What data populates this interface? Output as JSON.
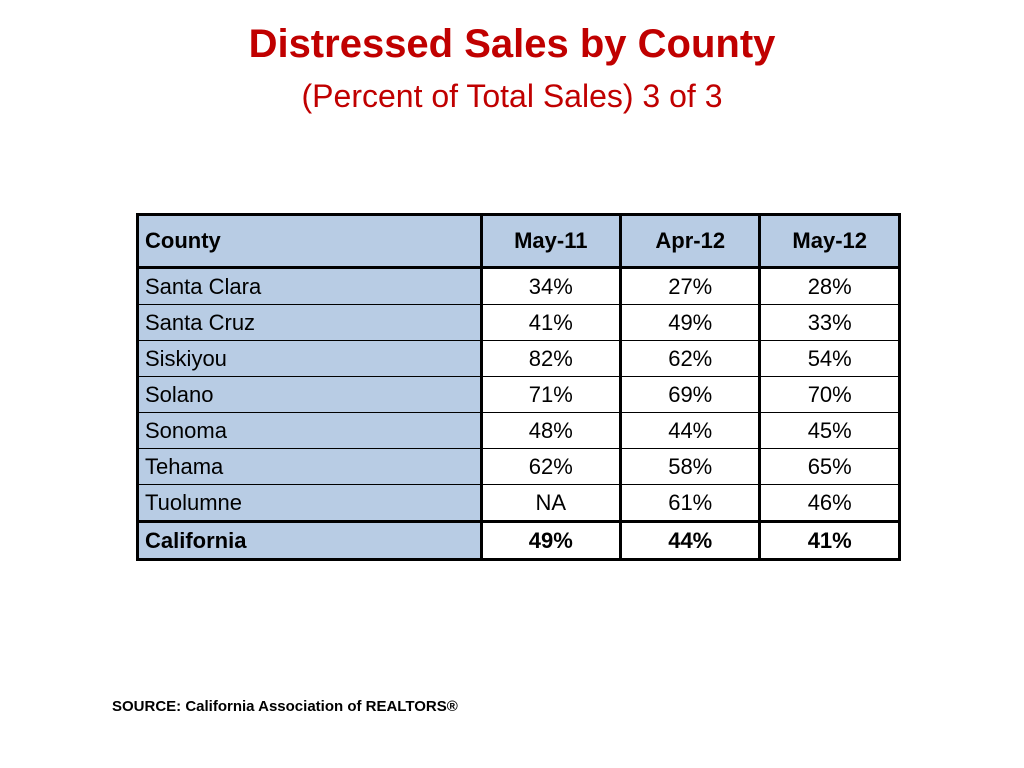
{
  "title": "Distressed Sales by County",
  "subtitle": "(Percent of Total Sales) 3 of 3",
  "table": {
    "headers": [
      "County",
      "May-11",
      "Apr-12",
      "May-12"
    ],
    "rows": [
      [
        "Santa Clara",
        "34%",
        "27%",
        "28%"
      ],
      [
        "Santa Cruz",
        "41%",
        "49%",
        "33%"
      ],
      [
        "Siskiyou",
        "82%",
        "62%",
        "54%"
      ],
      [
        "Solano",
        "71%",
        "69%",
        "70%"
      ],
      [
        "Sonoma",
        "48%",
        "44%",
        "45%"
      ],
      [
        "Tehama",
        "62%",
        "58%",
        "65%"
      ],
      [
        "Tuolumne",
        "NA",
        "61%",
        "46%"
      ]
    ],
    "total": [
      "California",
      "49%",
      "44%",
      "41%"
    ]
  },
  "source": "SOURCE: California Association of REALTORS®",
  "colors": {
    "title": "#c00000",
    "header_fill": "#b8cce4"
  }
}
